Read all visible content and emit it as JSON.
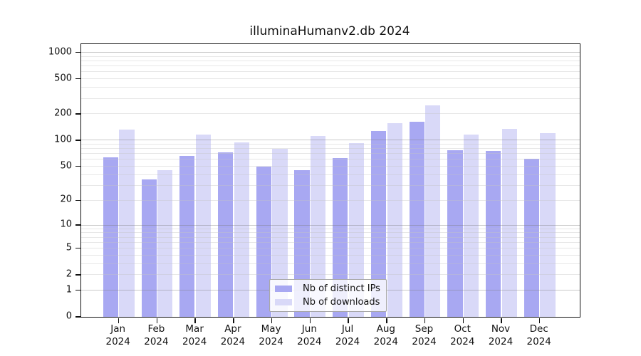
{
  "chart_data": {
    "type": "bar",
    "title": "illuminaHumanv2.db 2024",
    "x_year": "2024",
    "categories": [
      "Jan",
      "Feb",
      "Mar",
      "Apr",
      "May",
      "Jun",
      "Jul",
      "Aug",
      "Sep",
      "Oct",
      "Nov",
      "Dec"
    ],
    "series": [
      {
        "name": "Nb of distinct IPs",
        "color": "#a8a8f2",
        "values": [
          64,
          35,
          66,
          72,
          50,
          45,
          62,
          128,
          162,
          77,
          75,
          61
        ]
      },
      {
        "name": "Nb of downloads",
        "color": "#d9d9f8",
        "values": [
          132,
          45,
          115,
          94,
          80,
          112,
          92,
          157,
          248,
          116,
          134,
          120
        ]
      }
    ],
    "y_axis": {
      "scale": "log10(1+v)",
      "ticks": [
        0,
        1,
        2,
        5,
        10,
        20,
        50,
        100,
        200,
        500,
        1000
      ],
      "top_value": 1240
    },
    "grid": {
      "major_values": [
        1,
        10,
        100,
        1000
      ],
      "minor_base_values": [
        1,
        10,
        100
      ],
      "minor_multipliers": [
        2,
        3,
        4,
        5,
        6,
        7,
        8,
        9
      ]
    },
    "legend_position": "bottom-center"
  },
  "colors": {
    "background": "#ffffff",
    "axis": "#111111",
    "text": "#111111",
    "grid_major": "#cccccc",
    "grid_minor": "#ebebeb"
  }
}
